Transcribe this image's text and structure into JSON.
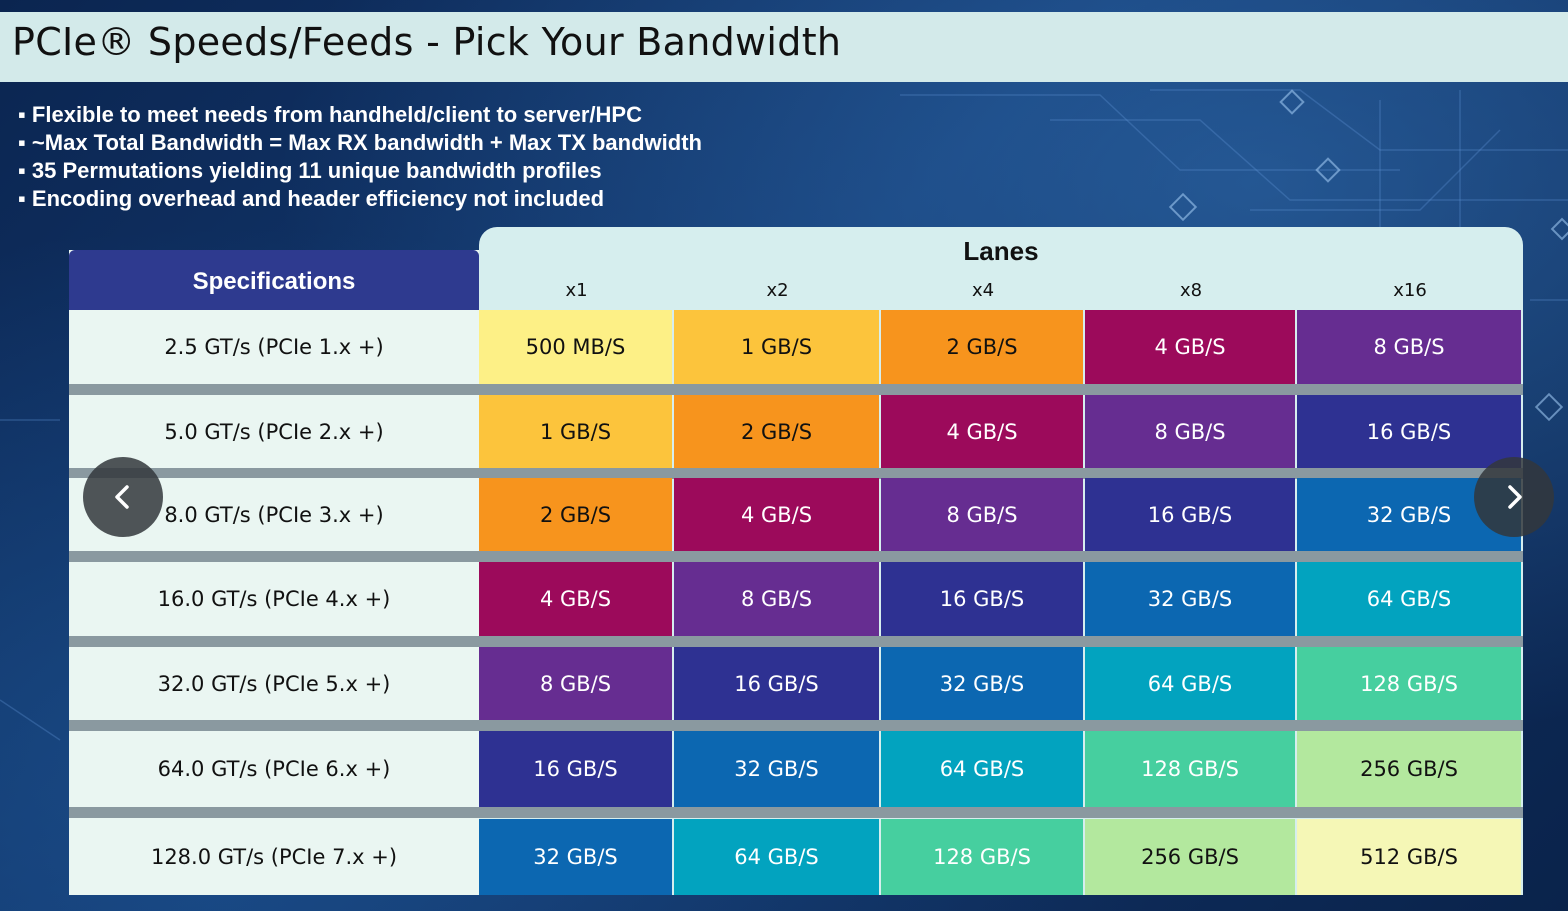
{
  "title": "PCIe® Speeds/Feeds - Pick Your Bandwidth",
  "bullets": [
    "Flexible to meet needs from handheld/client to server/HPC",
    "~Max Total Bandwidth = Max RX bandwidth + Max TX bandwidth",
    "35 Permutations yielding 11 unique bandwidth profiles",
    "Encoding overhead and header efficiency not included"
  ],
  "table": {
    "spec_header": "Specifications",
    "lanes_header": "Lanes",
    "lanes": [
      "x1",
      "x2",
      "x4",
      "x8",
      "x16"
    ],
    "rows": [
      {
        "spec": "2.5 GT/s (PCIe 1.x +)",
        "values": [
          "500 MB/S",
          "1 GB/S",
          "2 GB/S",
          "4 GB/S",
          "8 GB/S"
        ]
      },
      {
        "spec": "5.0 GT/s (PCIe 2.x +)",
        "values": [
          "1 GB/S",
          "2 GB/S",
          "4 GB/S",
          "8 GB/S",
          "16 GB/S"
        ]
      },
      {
        "spec": "8.0 GT/s (PCIe 3.x +)",
        "values": [
          "2 GB/S",
          "4 GB/S",
          "8 GB/S",
          "16 GB/S",
          "32 GB/S"
        ]
      },
      {
        "spec": "16.0 GT/s (PCIe 4.x +)",
        "values": [
          "4 GB/S",
          "8 GB/S",
          "16 GB/S",
          "32 GB/S",
          "64 GB/S"
        ]
      },
      {
        "spec": "32.0 GT/s (PCIe 5.x +)",
        "values": [
          "8 GB/S",
          "16 GB/S",
          "32 GB/S",
          "64 GB/S",
          "128 GB/S"
        ]
      },
      {
        "spec": "64.0 GT/s (PCIe 6.x +)",
        "values": [
          "16 GB/S",
          "32 GB/S",
          "64 GB/S",
          "128 GB/S",
          "256 GB/S"
        ]
      },
      {
        "spec": "128.0 GT/s (PCIe 7.x +)",
        "values": [
          "32 GB/S",
          "64 GB/S",
          "128 GB/S",
          "256 GB/S",
          "512 GB/S"
        ]
      }
    ],
    "bandwidth_colors": [
      "#fdf086",
      "#fcc43c",
      "#f7941d",
      "#9c0a5b",
      "#662d91",
      "#2e3192",
      "#0c67b1",
      "#02a3bf",
      "#46cf9f",
      "#b3e89e",
      "#f5f7b6"
    ],
    "text_colors": [
      "#111111",
      "#111111",
      "#111111",
      "#ffffff",
      "#ffffff",
      "#ffffff",
      "#ffffff",
      "#ffffff",
      "#ffffff",
      "#111111",
      "#111111"
    ]
  },
  "nav": {
    "prev_icon": "chevron-left-icon",
    "next_icon": "chevron-right-icon"
  }
}
